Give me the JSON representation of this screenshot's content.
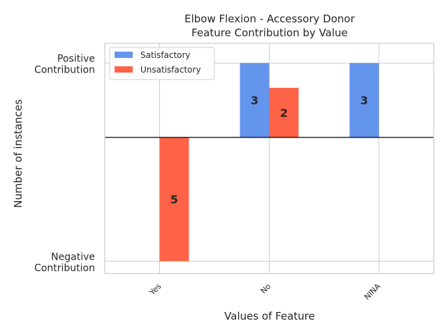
{
  "chart_data": {
    "type": "bar",
    "title": [
      "Elbow Flexion - Accessory Donor",
      "Feature Contribution by Value"
    ],
    "xlabel": "Values of Feature",
    "ylabel": "Number of instances",
    "categories": [
      "Yes",
      "No",
      "NINA"
    ],
    "y_tick_labels": [
      {
        "value": 3,
        "lines": [
          "Positive",
          "Contribution"
        ]
      },
      {
        "value": -5,
        "lines": [
          "Negative",
          "Contribution"
        ]
      }
    ],
    "ylim": [
      -5.5,
      3.8
    ],
    "series": [
      {
        "name": "Satisfactory",
        "color": "#6495ED",
        "values": [
          0,
          3,
          3
        ]
      },
      {
        "name": "Unsatisfactory",
        "color": "#FF6347",
        "values": [
          -5,
          2,
          0
        ]
      }
    ],
    "data_labels": {
      "Satisfactory": [
        "",
        "3",
        "3"
      ],
      "Unsatisfactory": [
        "5",
        "2",
        ""
      ]
    },
    "legend": "top-left",
    "grid": true
  }
}
